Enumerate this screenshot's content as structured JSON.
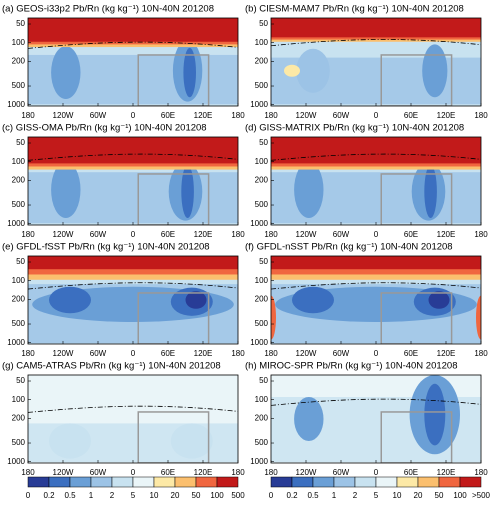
{
  "chart_data": [
    {
      "type": "contour",
      "title": "(a) GEOS-i33p2 Pb/Rn (kg kg⁻¹) 10N-40N 201208",
      "xlim": [
        -180,
        180
      ],
      "xticks": [
        {
          "value": -180,
          "label": "180"
        },
        {
          "value": -120,
          "label": "120W"
        },
        {
          "value": -60,
          "label": "60W"
        },
        0,
        {
          "value": 60,
          "label": "60E"
        },
        {
          "value": 120,
          "label": "120E"
        },
        180
      ],
      "ylim": [
        1050,
        40
      ],
      "yticks": [
        50,
        100,
        200,
        500,
        1000
      ],
      "log_y": true
    },
    {
      "type": "contour",
      "title": "(b) CIESM-MAM7 Pb/Rn (kg kg⁻¹) 10N-40N 201208",
      "xlim": [
        -180,
        180
      ],
      "xticks": [
        {
          "value": -180,
          "label": "180"
        },
        {
          "value": -120,
          "label": "120W"
        },
        {
          "value": -60,
          "label": "60W"
        },
        0,
        {
          "value": 60,
          "label": "60E"
        },
        {
          "value": 120,
          "label": "120E"
        },
        180
      ],
      "ylim": [
        1050,
        40
      ],
      "yticks": [
        50,
        100,
        200,
        500,
        1000
      ],
      "log_y": true
    },
    {
      "type": "contour",
      "title": "(c) GISS-OMA Pb/Rn (kg kg⁻¹) 10N-40N 201208",
      "xlim": [
        -180,
        180
      ],
      "xticks": [
        {
          "value": -180,
          "label": "180"
        },
        {
          "value": -120,
          "label": "120W"
        },
        {
          "value": -60,
          "label": "60W"
        },
        0,
        {
          "value": 60,
          "label": "60E"
        },
        {
          "value": 120,
          "label": "120E"
        },
        180
      ],
      "ylim": [
        1050,
        40
      ],
      "yticks": [
        50,
        100,
        200,
        500,
        1000
      ],
      "log_y": true
    },
    {
      "type": "contour",
      "title": "(d) GISS-MATRIX Pb/Rn (kg kg⁻¹) 10N-40N 201208",
      "xlim": [
        -180,
        180
      ],
      "xticks": [
        {
          "value": -180,
          "label": "180"
        },
        {
          "value": -120,
          "label": "120W"
        },
        {
          "value": -60,
          "label": "60W"
        },
        0,
        {
          "value": 60,
          "label": "60E"
        },
        {
          "value": 120,
          "label": "120E"
        },
        180
      ],
      "ylim": [
        1050,
        40
      ],
      "yticks": [
        50,
        100,
        200,
        500,
        1000
      ],
      "log_y": true
    },
    {
      "type": "contour",
      "title": "(e) GFDL-fSST Pb/Rn (kg kg⁻¹) 10N-40N 201208",
      "xlim": [
        -180,
        180
      ],
      "xticks": [
        {
          "value": -180,
          "label": "180"
        },
        {
          "value": -120,
          "label": "120W"
        },
        {
          "value": -60,
          "label": "60W"
        },
        0,
        {
          "value": 60,
          "label": "60E"
        },
        {
          "value": 120,
          "label": "120E"
        },
        180
      ],
      "ylim": [
        1050,
        40
      ],
      "yticks": [
        50,
        100,
        200,
        500,
        1000
      ],
      "log_y": true
    },
    {
      "type": "contour",
      "title": "(f) GFDL-nSST Pb/Rn (kg kg⁻¹) 10N-40N 201208",
      "xlim": [
        -180,
        180
      ],
      "xticks": [
        {
          "value": -180,
          "label": "180"
        },
        {
          "value": -120,
          "label": "120W"
        },
        {
          "value": -60,
          "label": "60W"
        },
        0,
        {
          "value": 60,
          "label": "60E"
        },
        {
          "value": 120,
          "label": "120E"
        },
        180
      ],
      "ylim": [
        1050,
        40
      ],
      "yticks": [
        50,
        100,
        200,
        500,
        1000
      ],
      "log_y": true
    },
    {
      "type": "contour",
      "title": "(g) CAM5-ATRAS Pb/Rn (kg kg⁻¹) 10N-40N 201208",
      "xlim": [
        -180,
        180
      ],
      "xticks": [
        {
          "value": -180,
          "label": "180"
        },
        {
          "value": -120,
          "label": "120W"
        },
        {
          "value": -60,
          "label": "60W"
        },
        0,
        {
          "value": 60,
          "label": "60E"
        },
        {
          "value": 120,
          "label": "120E"
        },
        180
      ],
      "ylim": [
        1050,
        40
      ],
      "yticks": [
        50,
        100,
        200,
        500,
        1000
      ],
      "log_y": true
    },
    {
      "type": "contour",
      "title": "(h) MIROC-SPR Pb/Rn (kg kg⁻¹) 10N-40N 201208",
      "xlim": [
        -180,
        180
      ],
      "xticks": [
        {
          "value": -180,
          "label": "180"
        },
        {
          "value": -120,
          "label": "120W"
        },
        {
          "value": -60,
          "label": "60W"
        },
        0,
        {
          "value": 60,
          "label": "60E"
        },
        {
          "value": 120,
          "label": "120E"
        },
        180
      ],
      "ylim": [
        1050,
        40
      ],
      "yticks": [
        50,
        100,
        200,
        500,
        1000
      ],
      "log_y": true
    }
  ],
  "colorbars": [
    {
      "ticks": [
        0,
        0.2,
        0.5,
        1,
        2,
        5,
        10,
        20,
        50,
        100,
        500
      ],
      "colors": [
        "#283c96",
        "#3b6fc0",
        "#6a9fd6",
        "#9cc3e6",
        "#c8e2f0",
        "#eaf5f8",
        "#fde9a6",
        "#fbbf6e",
        "#f0663f",
        "#c21a1a"
      ]
    },
    {
      "ticks": [
        0,
        0.2,
        0.5,
        1,
        2,
        5,
        10,
        20,
        50,
        100,
        {
          "value": 500,
          "label": ">500"
        }
      ],
      "colors": [
        "#283c96",
        "#3b6fc0",
        "#6a9fd6",
        "#9cc3e6",
        "#c8e2f0",
        "#eaf5f8",
        "#fde9a6",
        "#fbbf6e",
        "#f0663f",
        "#c21a1a"
      ]
    }
  ]
}
